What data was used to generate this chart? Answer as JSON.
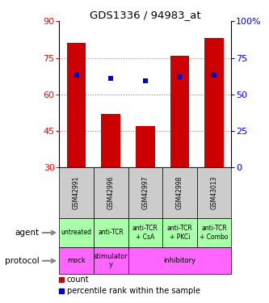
{
  "title": "GDS1336 / 94983_at",
  "samples": [
    "GSM42991",
    "GSM42996",
    "GSM42997",
    "GSM42998",
    "GSM43013"
  ],
  "bar_heights": [
    81,
    52,
    47,
    76,
    83
  ],
  "bar_bottom": 30,
  "percentile_ranks": [
    63,
    61,
    59,
    62,
    63
  ],
  "bar_color": "#cc0000",
  "percentile_color": "#0000cc",
  "left_ylim": [
    30,
    90
  ],
  "left_yticks": [
    30,
    45,
    60,
    75,
    90
  ],
  "right_ylim": [
    0,
    100
  ],
  "right_yticks": [
    0,
    25,
    50,
    75,
    100
  ],
  "right_yticklabels": [
    "0",
    "25",
    "50",
    "75",
    "100%"
  ],
  "agent_labels": [
    "untreated",
    "anti-TCR",
    "anti-TCR\n+ CsA",
    "anti-TCR\n+ PKCi",
    "anti-TCR\n+ Combo"
  ],
  "agent_color": "#aaffaa",
  "protocol_defs": [
    {
      "label": "mock",
      "start": 0,
      "end": 1
    },
    {
      "label": "stimulator\ny",
      "start": 1,
      "end": 2
    },
    {
      "label": "inhibitory",
      "start": 2,
      "end": 5
    }
  ],
  "protocol_color": "#ff66ff",
  "sample_bg_color": "#cccccc",
  "legend_count_color": "#cc0000",
  "legend_percentile_color": "#0000cc",
  "grid_color": "#888888",
  "bar_width": 0.55
}
